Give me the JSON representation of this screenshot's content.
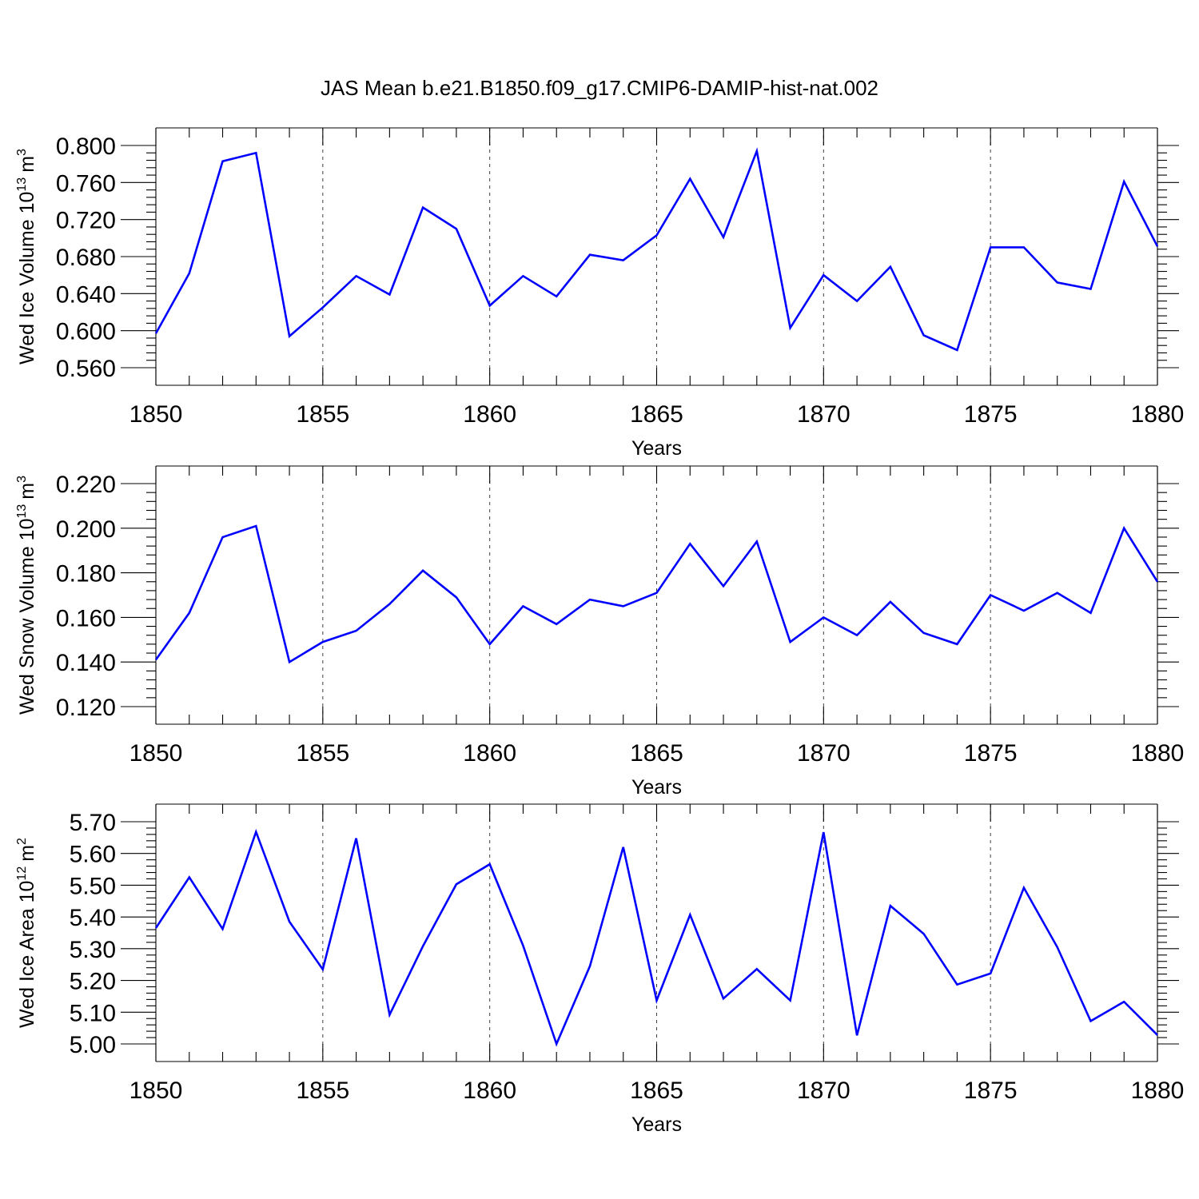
{
  "title": "JAS Mean b.e21.B1850.f09_g17.CMIP6-DAMIP-hist-nat.002",
  "colors": {
    "series": "#0000ff",
    "axis": "#000000",
    "background": "#ffffff"
  },
  "chart_data": [
    {
      "type": "line",
      "xlabel": "Years",
      "ylabel_main": "Wed Ice Volume 10",
      "ylabel_exp": "13",
      "ylabel_unit": "m",
      "ylabel_unit_exp": "3",
      "xlim": [
        1850,
        1880
      ],
      "ylim": [
        0.56,
        0.8
      ],
      "y_ticks": [
        "0.560",
        "0.600",
        "0.640",
        "0.680",
        "0.720",
        "0.760",
        "0.800"
      ],
      "x_ticks": [
        "1850",
        "1855",
        "1860",
        "1865",
        "1870",
        "1875",
        "1880"
      ],
      "grid": "dashed vertical at major x ticks",
      "x": [
        1850,
        1851,
        1852,
        1853,
        1854,
        1855,
        1856,
        1857,
        1858,
        1859,
        1860,
        1861,
        1862,
        1863,
        1864,
        1865,
        1866,
        1867,
        1868,
        1869,
        1870,
        1871,
        1872,
        1873,
        1874,
        1875,
        1876,
        1877,
        1878,
        1879,
        1880
      ],
      "values": [
        0.597,
        0.662,
        0.783,
        0.792,
        0.594,
        0.625,
        0.659,
        0.639,
        0.733,
        0.71,
        0.627,
        0.659,
        0.637,
        0.682,
        0.676,
        0.703,
        0.764,
        0.701,
        0.794,
        0.603,
        0.66,
        0.632,
        0.669,
        0.595,
        0.579,
        0.69,
        0.69,
        0.652,
        0.645,
        0.761,
        0.691
      ]
    },
    {
      "type": "line",
      "xlabel": "Years",
      "ylabel_main": "Wed Snow Volume 10",
      "ylabel_exp": "13",
      "ylabel_unit": "m",
      "ylabel_unit_exp": "3",
      "xlim": [
        1850,
        1880
      ],
      "ylim": [
        0.12,
        0.22
      ],
      "y_ticks": [
        "0.120",
        "0.140",
        "0.160",
        "0.180",
        "0.200",
        "0.220"
      ],
      "x_ticks": [
        "1850",
        "1855",
        "1860",
        "1865",
        "1870",
        "1875",
        "1880"
      ],
      "grid": "dashed vertical at major x ticks",
      "x": [
        1850,
        1851,
        1852,
        1853,
        1854,
        1855,
        1856,
        1857,
        1858,
        1859,
        1860,
        1861,
        1862,
        1863,
        1864,
        1865,
        1866,
        1867,
        1868,
        1869,
        1870,
        1871,
        1872,
        1873,
        1874,
        1875,
        1876,
        1877,
        1878,
        1879,
        1880
      ],
      "values": [
        0.141,
        0.162,
        0.196,
        0.201,
        0.14,
        0.149,
        0.154,
        0.166,
        0.181,
        0.169,
        0.148,
        0.165,
        0.157,
        0.168,
        0.165,
        0.171,
        0.193,
        0.174,
        0.194,
        0.149,
        0.16,
        0.152,
        0.167,
        0.153,
        0.148,
        0.17,
        0.163,
        0.171,
        0.162,
        0.2,
        0.176
      ]
    },
    {
      "type": "line",
      "xlabel": "Years",
      "ylabel_main": "Wed Ice Area 10",
      "ylabel_exp": "12",
      "ylabel_unit": "m",
      "ylabel_unit_exp": "2",
      "xlim": [
        1850,
        1880
      ],
      "ylim": [
        5.0,
        5.7
      ],
      "y_ticks": [
        "5.00",
        "5.10",
        "5.20",
        "5.30",
        "5.40",
        "5.50",
        "5.60",
        "5.70"
      ],
      "x_ticks": [
        "1850",
        "1855",
        "1860",
        "1865",
        "1870",
        "1875",
        "1880"
      ],
      "grid": "dashed vertical at major x ticks",
      "x": [
        1850,
        1851,
        1852,
        1853,
        1854,
        1855,
        1856,
        1857,
        1858,
        1859,
        1860,
        1861,
        1862,
        1863,
        1864,
        1865,
        1866,
        1867,
        1868,
        1869,
        1870,
        1871,
        1872,
        1873,
        1874,
        1875,
        1876,
        1877,
        1878,
        1879,
        1880
      ],
      "values": [
        5.365,
        5.525,
        5.362,
        5.668,
        5.385,
        5.235,
        5.648,
        5.092,
        5.308,
        5.503,
        5.566,
        5.31,
        5.0,
        5.245,
        5.62,
        5.137,
        5.407,
        5.143,
        5.236,
        5.137,
        5.667,
        5.027,
        5.435,
        5.347,
        5.187,
        5.222,
        5.492,
        5.305,
        5.072,
        5.133,
        5.028
      ]
    }
  ]
}
